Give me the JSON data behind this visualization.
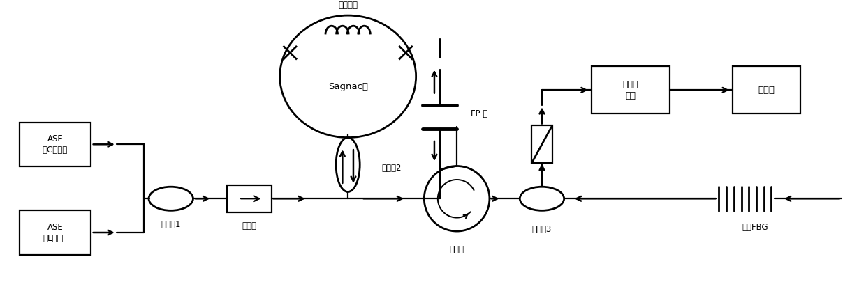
{
  "bg_color": "#ffffff",
  "fig_width": 12.4,
  "fig_height": 4.28,
  "labels": {
    "ase_c": "ASE\n（C波段）",
    "ase_l": "ASE\n（L波段）",
    "coupler1": "耦合器1",
    "isolator": "隔离器",
    "coupler2": "耦合器2",
    "sagnac": "Sagnac环",
    "dual_fiber": "双孔光纤",
    "fp": "FP 腔",
    "circulator": "环形器",
    "coupler3": "耦合器3",
    "photodet": "光电探\n测器",
    "oscilloscope": "示波器",
    "fbg": "平顶FBG"
  }
}
